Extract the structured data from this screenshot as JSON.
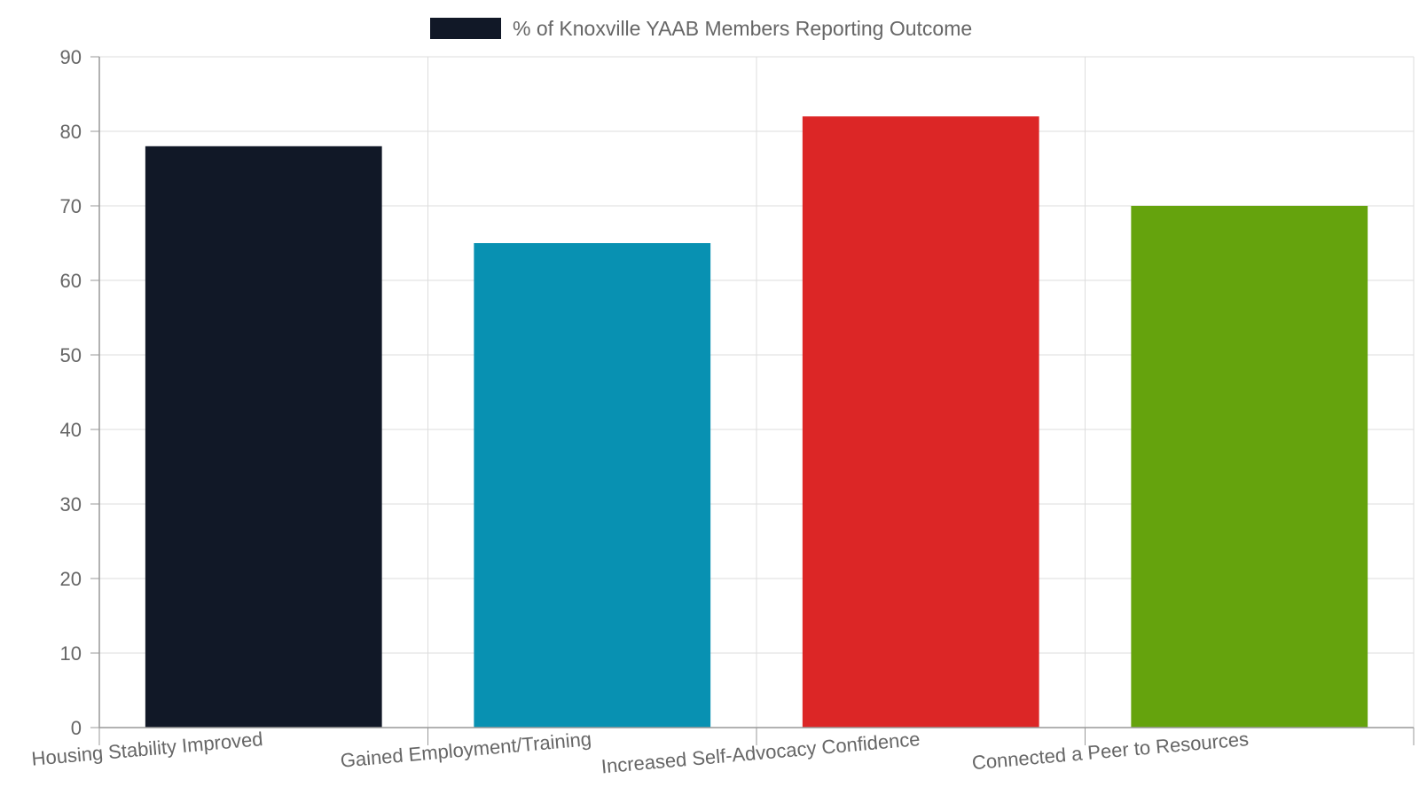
{
  "chart_data": {
    "type": "bar",
    "categories": [
      "Housing Stability Improved",
      "Gained Employment/Training",
      "Increased Self-Advocacy Confidence",
      "Connected a Peer to Resources"
    ],
    "series": [
      {
        "name": "% of Knoxville YAAB Members Reporting Outcome",
        "values": [
          78,
          65,
          82,
          70
        ]
      }
    ],
    "bar_colors": [
      "#111827",
      "#0891b2",
      "#dc2626",
      "#65a30d"
    ],
    "legend_color": "#111827",
    "title": "",
    "xlabel": "",
    "ylabel": "",
    "ylim": [
      0,
      90
    ],
    "yticks": [
      0,
      10,
      20,
      30,
      40,
      50,
      60,
      70,
      80,
      90
    ],
    "grid": true,
    "legend_position": "top-center"
  }
}
